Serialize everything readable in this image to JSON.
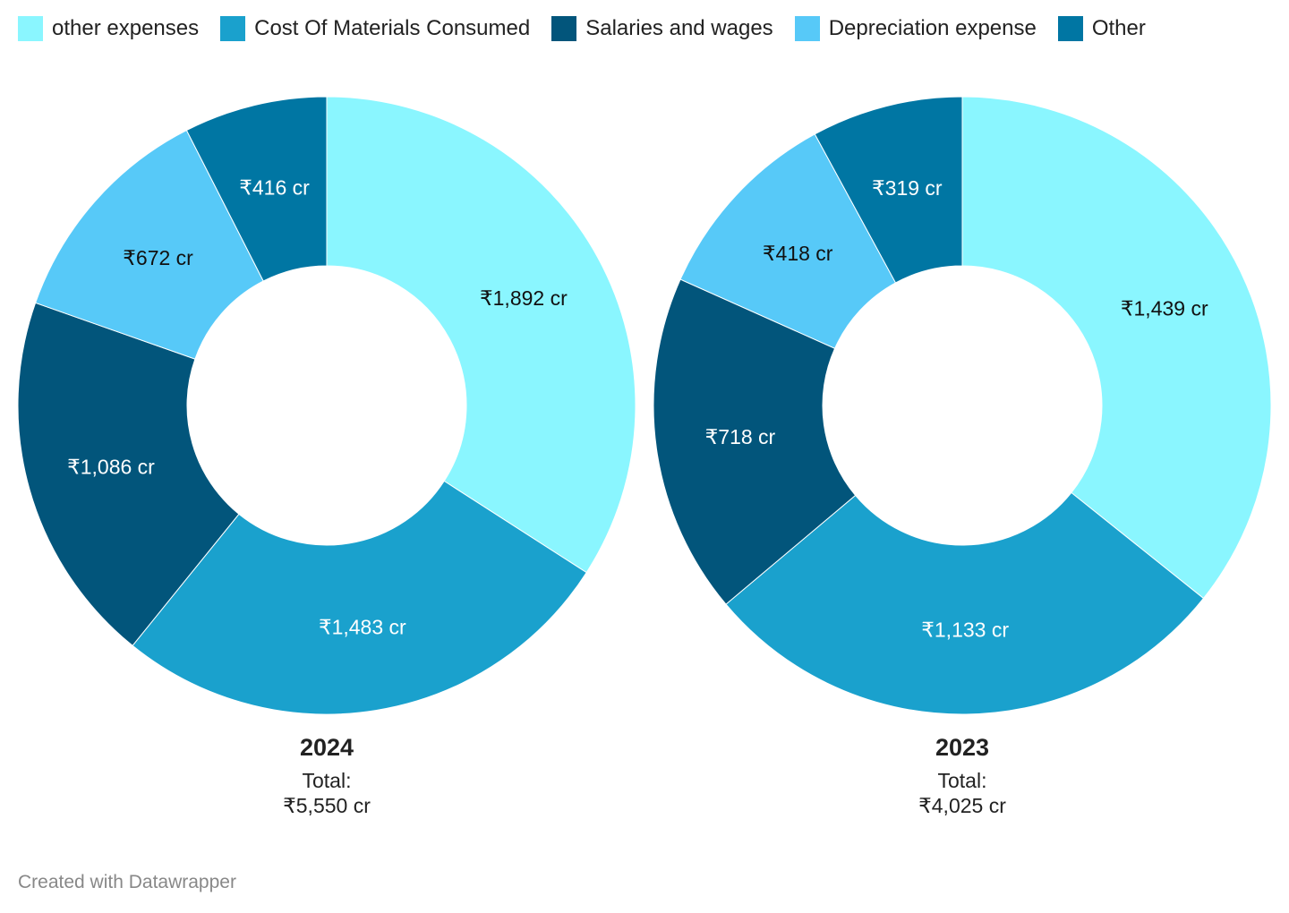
{
  "legend": [
    {
      "label": "other expenses",
      "color": "#8af6ff"
    },
    {
      "label": "Cost Of Materials Consumed",
      "color": "#1aa1cd"
    },
    {
      "label": "Salaries and wages",
      "color": "#02557b"
    },
    {
      "label": "Depreciation expense",
      "color": "#57c9f8"
    },
    {
      "label": "Other",
      "color": "#0076a3"
    }
  ],
  "chart_data": [
    {
      "type": "pie",
      "title": "2024",
      "total_label": "Total:",
      "total_value": "₹5,550 cr",
      "categories": [
        "other expenses",
        "Cost Of Materials Consumed",
        "Salaries and wages",
        "Depreciation expense",
        "Other"
      ],
      "values": [
        1892,
        1483,
        1086,
        672,
        416
      ],
      "labels": [
        "₹1,892 cr",
        "₹1,483 cr",
        "₹1,086 cr",
        "₹672 cr",
        "₹416 cr"
      ],
      "colors": [
        "#8af6ff",
        "#1aa1cd",
        "#02557b",
        "#57c9f8",
        "#0076a3"
      ],
      "label_colors": [
        "#111111",
        "#ffffff",
        "#ffffff",
        "#111111",
        "#ffffff"
      ]
    },
    {
      "type": "pie",
      "title": "2023",
      "total_label": "Total:",
      "total_value": "₹4,025 cr",
      "categories": [
        "other expenses",
        "Cost Of Materials Consumed",
        "Salaries and wages",
        "Depreciation expense",
        "Other"
      ],
      "values": [
        1439,
        1133,
        718,
        418,
        319
      ],
      "labels": [
        "₹1,439 cr",
        "₹1,133 cr",
        "₹718 cr",
        "₹418 cr",
        "₹319 cr"
      ],
      "colors": [
        "#8af6ff",
        "#1aa1cd",
        "#02557b",
        "#57c9f8",
        "#0076a3"
      ],
      "label_colors": [
        "#111111",
        "#ffffff",
        "#ffffff",
        "#111111",
        "#ffffff"
      ]
    }
  ],
  "footer": "Created with Datawrapper"
}
